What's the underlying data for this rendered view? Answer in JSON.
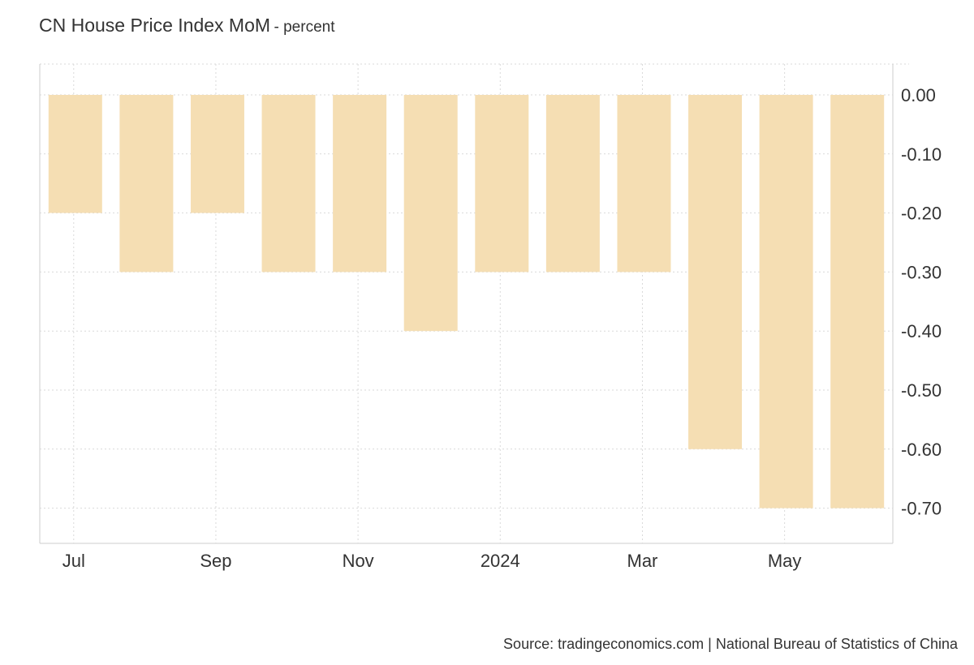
{
  "header": {
    "title": "CN House Price Index MoM",
    "subtitle": "- percent"
  },
  "footer": {
    "source": "Source: tradingeconomics.com | National Bureau of Statistics of China"
  },
  "colors": {
    "bar": "#f5deb3",
    "grid": "#d9d9d9",
    "axis": "#cccccc"
  },
  "chart_data": {
    "type": "bar",
    "title": "CN House Price Index MoM",
    "subtitle": "percent",
    "categories": [
      "Jul 2023",
      "Aug 2023",
      "Sep 2023",
      "Oct 2023",
      "Nov 2023",
      "Dec 2023",
      "Jan 2024",
      "Feb 2024",
      "Mar 2024",
      "Apr 2024",
      "May 2024",
      "Jun 2024"
    ],
    "values": [
      -0.2,
      -0.3,
      -0.2,
      -0.3,
      -0.3,
      -0.4,
      -0.3,
      -0.3,
      -0.3,
      -0.6,
      -0.7,
      -0.7
    ],
    "x_tick_labels": [
      {
        "label": "Jul",
        "index": 0
      },
      {
        "label": "Sep",
        "index": 2
      },
      {
        "label": "Nov",
        "index": 4
      },
      {
        "label": "2024",
        "index": 6
      },
      {
        "label": "Mar",
        "index": 8
      },
      {
        "label": "May",
        "index": 10
      }
    ],
    "y_ticks": [
      "0.00",
      "-0.10",
      "-0.20",
      "-0.30",
      "-0.40",
      "-0.50",
      "-0.60",
      "-0.70"
    ],
    "y_tick_values": [
      0,
      -0.1,
      -0.2,
      -0.3,
      -0.4,
      -0.5,
      -0.6,
      -0.7
    ],
    "ylim": [
      -0.75,
      0.05
    ],
    "xlabel": "",
    "ylabel": "",
    "grid": true,
    "y_axis_side": "right"
  }
}
